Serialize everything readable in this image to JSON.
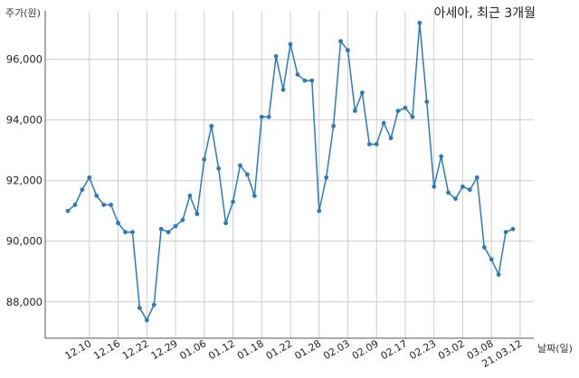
{
  "chart_data": {
    "type": "line",
    "title": "아세아, 최근 3개월",
    "ylabel": "주가(원)",
    "xlabel": "날짜(일)",
    "ylim": [
      86800,
      97600
    ],
    "yticks": [
      88000,
      90000,
      92000,
      94000,
      96000
    ],
    "ytick_labels": [
      "88,000",
      "90,000",
      "92,000",
      "94,000",
      "96,000"
    ],
    "grid": true,
    "line_color": "#2b7bb9",
    "xtick_labels": [
      "12.10",
      "12.16",
      "12.22",
      "12.29",
      "01.06",
      "01.12",
      "01.18",
      "01.22",
      "01.28",
      "02.03",
      "02.09",
      "02.17",
      "02.23",
      "03.02",
      "03.08",
      "21.03.12"
    ],
    "xtick_positions": [
      3,
      7,
      11,
      15,
      19,
      23,
      27,
      31,
      35,
      39,
      43,
      47,
      51,
      55,
      59,
      63
    ],
    "series": [
      {
        "values": [
          91000,
          91200,
          91700,
          92100,
          91500,
          91200,
          91200,
          90600,
          90300,
          90300,
          87800,
          87400,
          87900,
          90400,
          90300,
          90500,
          90700,
          91500,
          90900,
          92700,
          93800,
          92400,
          90600,
          91300,
          92500,
          92200,
          91500,
          94100,
          94100,
          96100,
          95000,
          96500,
          95500,
          95300,
          95300,
          91000,
          92100,
          93800,
          96600,
          96300,
          94300,
          94900,
          93200,
          93200,
          93900,
          93400,
          94300,
          94400,
          94100,
          97200,
          94600,
          91800,
          92800,
          91600,
          91400,
          91800,
          91700,
          92100,
          89800,
          89400,
          88900,
          90300,
          90400
        ]
      }
    ]
  }
}
